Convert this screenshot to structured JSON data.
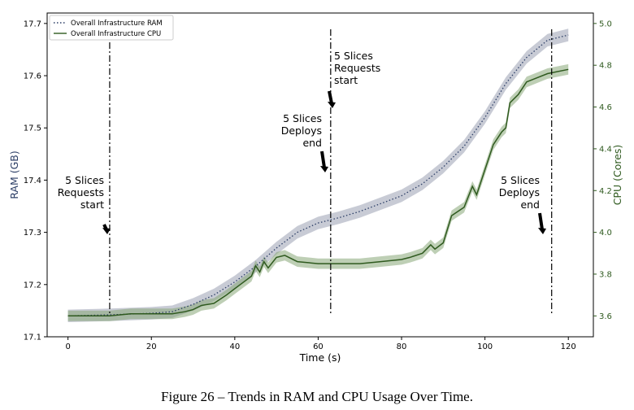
{
  "caption": "Figure 26 – Trends in RAM and CPU Usage Over Time.",
  "chart_data": {
    "type": "line",
    "title": "",
    "xlabel": "Time (s)",
    "ylabel_left": "RAM (GB)",
    "ylabel_right": "CPU (Cores)",
    "xlim": [
      -5,
      126
    ],
    "ylim_left": [
      17.1,
      17.72
    ],
    "ylim_right": [
      3.5,
      5.05
    ],
    "xticks": [
      0,
      20,
      40,
      60,
      80,
      100,
      120
    ],
    "yticks_left": [
      17.1,
      17.2,
      17.3,
      17.4,
      17.5,
      17.6,
      17.7
    ],
    "yticks_right": [
      3.6,
      3.8,
      4.0,
      4.2,
      4.4,
      4.6,
      4.8,
      5.0
    ],
    "grid": false,
    "legend_position": "upper-left",
    "colors": {
      "ram": "#2c3e66",
      "ram_band": "#9aa0b2",
      "cpu": "#2f5a1f",
      "cpu_band": "#88a878",
      "right_axis": "#2f5a1f",
      "left_label": "#2c3e66"
    },
    "series": [
      {
        "name": "Overall Infrastructure RAM",
        "axis": "left",
        "style": "dotted",
        "x": [
          0,
          10,
          20,
          25,
          30,
          35,
          40,
          45,
          50,
          55,
          60,
          65,
          70,
          75,
          80,
          85,
          90,
          95,
          100,
          105,
          110,
          115,
          120
        ],
        "y": [
          17.14,
          17.142,
          17.145,
          17.148,
          17.162,
          17.18,
          17.205,
          17.235,
          17.27,
          17.3,
          17.318,
          17.328,
          17.34,
          17.355,
          17.37,
          17.393,
          17.425,
          17.465,
          17.52,
          17.585,
          17.635,
          17.668,
          17.678
        ],
        "band": 0.012
      },
      {
        "name": "Overall Infrastructure CPU",
        "axis": "right",
        "style": "solid",
        "x": [
          0,
          5,
          10,
          15,
          20,
          25,
          28,
          30,
          32,
          35,
          38,
          40,
          42,
          44,
          45,
          46,
          47,
          48,
          50,
          52,
          55,
          60,
          65,
          70,
          75,
          80,
          82,
          85,
          87,
          88,
          90,
          92,
          95,
          97,
          98,
          100,
          102,
          104,
          105,
          106,
          108,
          110,
          115,
          120
        ],
        "y": [
          3.6,
          3.6,
          3.6,
          3.61,
          3.61,
          3.61,
          3.62,
          3.63,
          3.65,
          3.66,
          3.7,
          3.73,
          3.76,
          3.79,
          3.84,
          3.81,
          3.86,
          3.83,
          3.88,
          3.89,
          3.86,
          3.85,
          3.85,
          3.85,
          3.86,
          3.87,
          3.88,
          3.9,
          3.94,
          3.92,
          3.95,
          4.08,
          4.12,
          4.22,
          4.18,
          4.3,
          4.42,
          4.48,
          4.5,
          4.62,
          4.66,
          4.72,
          4.76,
          4.78
        ],
        "band": 0.025
      }
    ],
    "annotations": [
      {
        "x": 10,
        "lines": [
          "5 Slices",
          "Requests",
          "start"
        ]
      },
      {
        "x": 63,
        "lines": [
          "5 Slices",
          "Deploys",
          "end"
        ]
      },
      {
        "x": 63,
        "lines": [
          "5 Slices",
          "Requests",
          "start"
        ]
      },
      {
        "x": 116,
        "lines": [
          "5 Slices",
          "Deploys",
          "end"
        ]
      }
    ]
  }
}
